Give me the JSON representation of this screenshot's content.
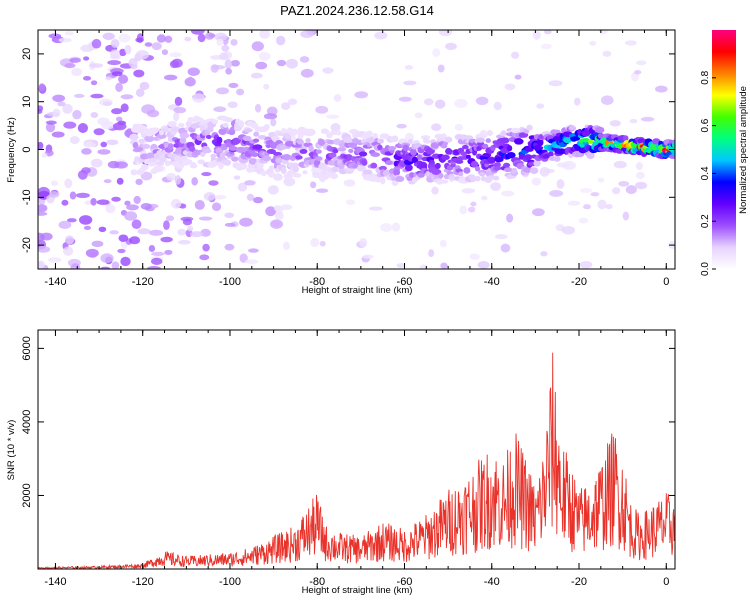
{
  "title": "PAZ1.2024.236.12.58.G14",
  "chart_data": [
    {
      "type": "heatmap",
      "xlabel": "Height of straight line (km)",
      "ylabel": "Frequency (Hz)",
      "xlim": [
        -144,
        2
      ],
      "ylim": [
        -25,
        25
      ],
      "xticks": [
        -140,
        -120,
        -100,
        -80,
        -60,
        -40,
        -20,
        0
      ],
      "yticks": [
        -20,
        -10,
        0,
        10,
        20
      ],
      "colorbar": {
        "label": "Normalized spectral amplitude",
        "range": [
          0,
          1
        ],
        "ticks": [
          "0.0",
          "0.2",
          "0.4",
          "0.6",
          "0.8"
        ],
        "colormap": [
          "#ffffff",
          "#e6d2ff",
          "#9d4dff",
          "#6200ff",
          "#0000ff",
          "#00c8ff",
          "#00ff80",
          "#40ff00",
          "#ffff00",
          "#ff8000",
          "#ff0000",
          "#ff0080"
        ]
      },
      "ridge": {
        "x": [
          -120,
          -110,
          -100,
          -90,
          -80,
          -70,
          -60,
          -50,
          -40,
          -30,
          -20,
          -10,
          0
        ],
        "freq": [
          0,
          1.5,
          1.5,
          -0.5,
          -1,
          -1,
          -2.5,
          -2,
          -1.5,
          0,
          2,
          1,
          0
        ],
        "peak_amplitude": [
          0.15,
          0.2,
          0.25,
          0.2,
          0.2,
          0.22,
          0.3,
          0.3,
          0.35,
          0.45,
          0.6,
          0.85,
          1.0
        ]
      },
      "grid": false
    },
    {
      "type": "line",
      "xlabel": "Height of straight line (km)",
      "ylabel": "SNR (10 * v/v)",
      "xlim": [
        -144,
        2
      ],
      "ylim": [
        0,
        6500
      ],
      "xticks": [
        -140,
        -120,
        -100,
        -80,
        -60,
        -40,
        -20,
        0
      ],
      "yticks": [
        2000,
        4000,
        6000
      ],
      "color": "#e8322a",
      "series": [
        {
          "x": [
            -144,
            -130,
            -120,
            -115,
            -110,
            -100,
            -95,
            -90,
            -85,
            -80,
            -78,
            -75,
            -70,
            -65,
            -60,
            -55,
            -50,
            -45,
            -40,
            -37,
            -35,
            -32,
            -30,
            -28,
            -26,
            -25,
            -24,
            -22,
            -20,
            -18,
            -15,
            -12,
            -11,
            -10,
            -8,
            -6,
            -4,
            -2,
            0,
            2
          ],
          "y": [
            50,
            80,
            150,
            500,
            350,
            450,
            600,
            900,
            1200,
            2100,
            1200,
            1000,
            900,
            1300,
            1100,
            1500,
            2200,
            2700,
            3400,
            3000,
            3900,
            3000,
            2300,
            3500,
            6000,
            4900,
            3500,
            3000,
            2200,
            2400,
            3000,
            3900,
            3500,
            3200,
            1800,
            1500,
            1700,
            1900,
            2100,
            2000
          ]
        }
      ],
      "grid": false
    }
  ]
}
